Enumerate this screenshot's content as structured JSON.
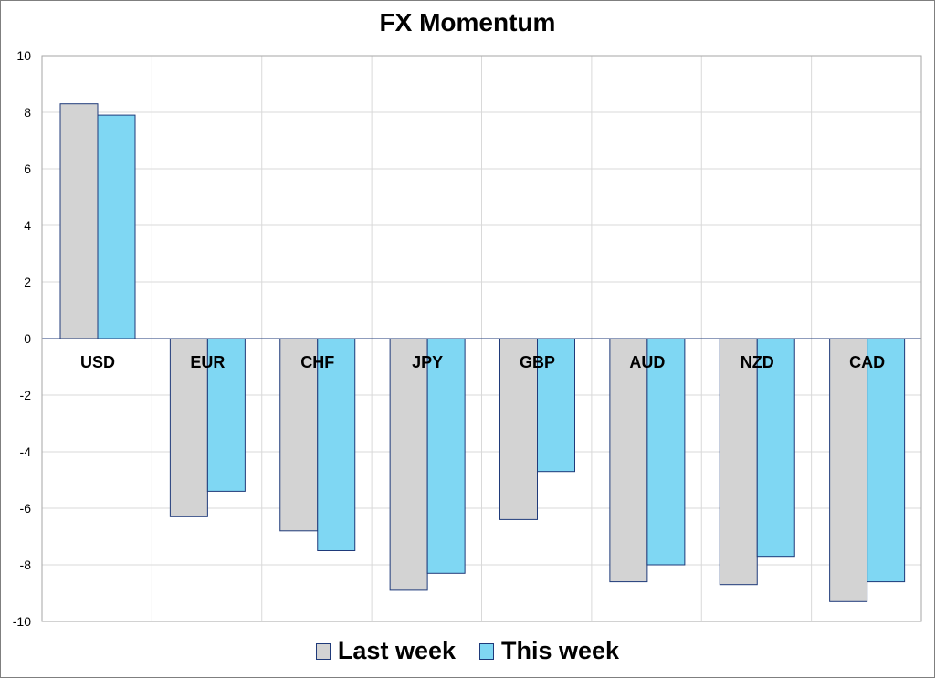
{
  "chart_data": {
    "type": "bar",
    "title": "FX Momentum",
    "categories": [
      "USD",
      "EUR",
      "CHF",
      "JPY",
      "GBP",
      "AUD",
      "NZD",
      "CAD"
    ],
    "series": [
      {
        "name": "Last week",
        "color": "#d3d3d3",
        "values": [
          8.3,
          -6.3,
          -6.8,
          -8.9,
          -6.4,
          -8.6,
          -8.7,
          -9.3
        ]
      },
      {
        "name": "This week",
        "color": "#7fd7f3",
        "values": [
          7.9,
          -5.4,
          -7.5,
          -8.3,
          -4.7,
          -8.0,
          -7.7,
          -8.6
        ]
      }
    ],
    "yticks": [
      "10",
      "8",
      "6",
      "4",
      "2",
      "0",
      "-2",
      "-4",
      "-6",
      "-8",
      "-10"
    ],
    "ylim": [
      -10,
      10
    ],
    "grid": true,
    "legend_position": "bottom",
    "bar_border_color": "#1f3a7a"
  }
}
